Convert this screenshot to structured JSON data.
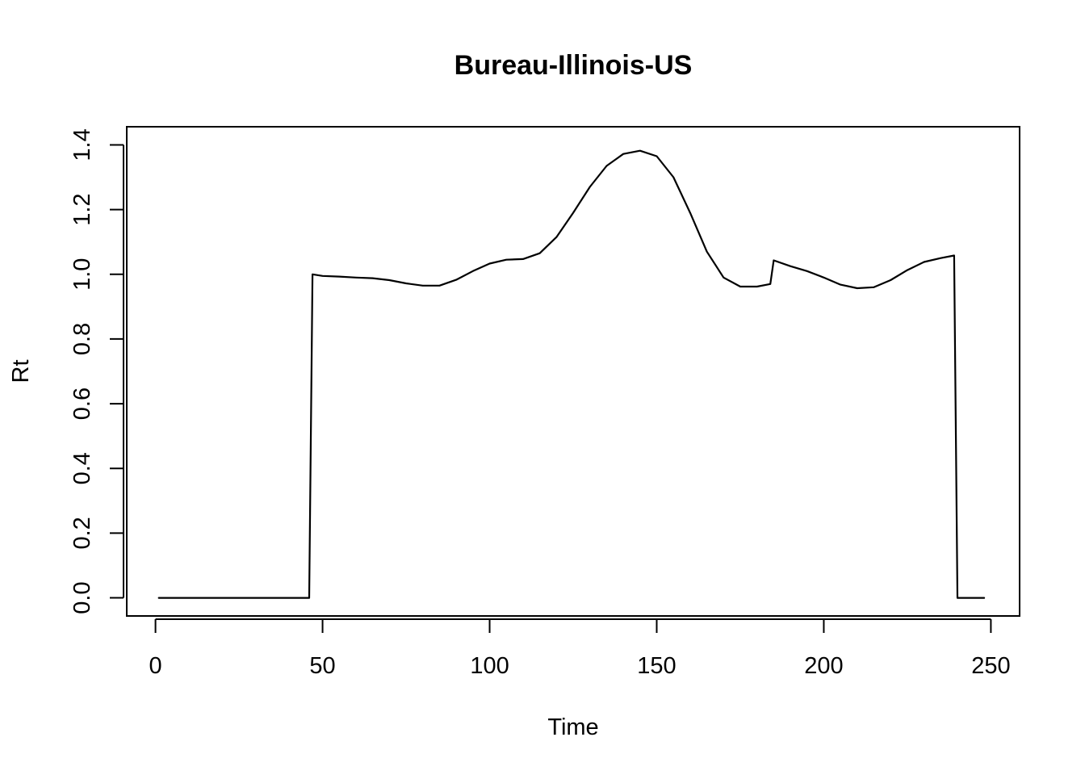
{
  "chart_data": {
    "type": "line",
    "title": "Bureau-Illinois-US",
    "xlabel": "Time",
    "ylabel": "Rt",
    "xlim": [
      -8.6,
      258.6
    ],
    "ylim": [
      -0.056,
      1.456
    ],
    "xticks": [
      0,
      50,
      100,
      150,
      200,
      250
    ],
    "yticks": [
      0.0,
      0.2,
      0.4,
      0.6,
      0.8,
      1.0,
      1.2,
      1.4
    ],
    "xtick_labels": [
      "0",
      "50",
      "100",
      "150",
      "200",
      "250"
    ],
    "ytick_labels": [
      "0.0",
      "0.2",
      "0.4",
      "0.6",
      "0.8",
      "1.0",
      "1.2",
      "1.4"
    ],
    "grid": false,
    "legend": "none",
    "line_color": "#000000",
    "series": [
      {
        "x": [
          1,
          46,
          47,
          50,
          55,
          60,
          65,
          70,
          75,
          80,
          85,
          90,
          95,
          100,
          105,
          110,
          115,
          120,
          125,
          130,
          135,
          140,
          145,
          150,
          155,
          160,
          165,
          170,
          175,
          180,
          184,
          185,
          190,
          195,
          200,
          205,
          210,
          215,
          220,
          225,
          230,
          235,
          239,
          240,
          248
        ],
        "y": [
          0,
          0,
          1.0,
          0.995,
          0.993,
          0.99,
          0.988,
          0.982,
          0.972,
          0.965,
          0.965,
          0.983,
          1.01,
          1.033,
          1.045,
          1.047,
          1.065,
          1.115,
          1.19,
          1.27,
          1.335,
          1.372,
          1.382,
          1.365,
          1.3,
          1.19,
          1.07,
          0.99,
          0.962,
          0.962,
          0.97,
          1.043,
          1.025,
          1.01,
          0.99,
          0.968,
          0.957,
          0.96,
          0.982,
          1.013,
          1.038,
          1.05,
          1.058,
          0,
          0
        ]
      }
    ]
  }
}
